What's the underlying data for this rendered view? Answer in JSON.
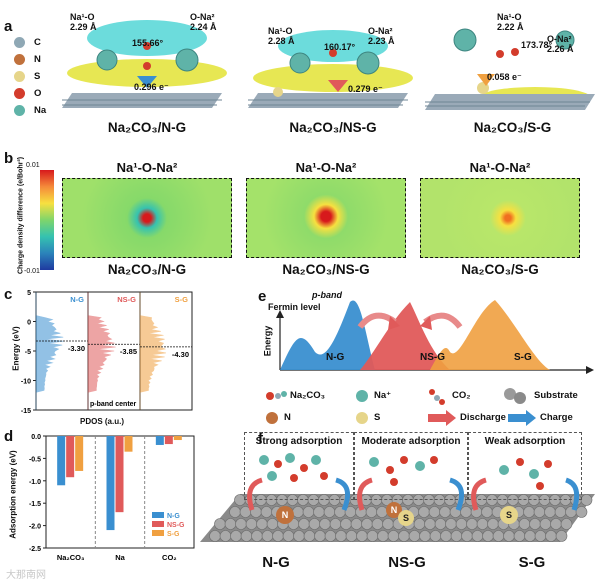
{
  "panels": {
    "a": {
      "label": "a",
      "legend": [
        {
          "symbol": "C",
          "color": "#8fa8b5"
        },
        {
          "symbol": "N",
          "color": "#c0713c"
        },
        {
          "symbol": "S",
          "color": "#e6d58a"
        },
        {
          "symbol": "O",
          "color": "#d33c2c"
        },
        {
          "symbol": "Na",
          "color": "#5fb3a8"
        }
      ],
      "structures": [
        {
          "name": "Na₂CO₃/N-G",
          "na1o_label": "Na¹-O",
          "na1o_value": "2.29 Å",
          "ona2_label": "O-Na²",
          "ona2_value": "2.24 Å",
          "angle": "155.66°",
          "charge": "0.296 e⁻"
        },
        {
          "name": "Na₂CO₃/NS-G",
          "na1o_label": "Na¹-O",
          "na1o_value": "2.28 Å",
          "ona2_label": "O-Na²",
          "ona2_value": "2.23 Å",
          "angle": "160.17°",
          "charge": "0.279 e⁻"
        },
        {
          "name": "Na₂CO₃/S-G",
          "na1o_label": "Na¹-O",
          "na1o_value": "2.22 Å",
          "ona2_label": "O-Na²",
          "ona2_value": "2.26 Å",
          "angle": "173.78°",
          "charge": "0.058 e⁻"
        }
      ]
    },
    "b": {
      "label": "b",
      "colorbar_label": "Charge density difference (e/Bohr³)",
      "colorbar_max": "0.01",
      "colorbar_min": "-0.01",
      "maps": [
        {
          "title": "Na¹-O-Na²",
          "name": "Na₂CO₃/N-G",
          "border": "#3a8fd0"
        },
        {
          "title": "Na¹-O-Na²",
          "name": "Na₂CO₃/NS-G",
          "border": "#e05a5a"
        },
        {
          "title": "Na¹-O-Na²",
          "name": "Na₂CO₃/S-G",
          "border": "#9ec23a"
        }
      ]
    },
    "c": {
      "label": "c",
      "ylabel": "Energy (eV)",
      "xlabel": "PDOS (a.u.)",
      "note": "p-band center",
      "yticks": [
        "5",
        "0",
        "-5",
        "-10",
        "-15"
      ],
      "columns": [
        {
          "name": "N-G",
          "center": "-3.30",
          "color": "#3a8fd0"
        },
        {
          "name": "NS-G",
          "center": "-3.85",
          "color": "#e05a5a"
        },
        {
          "name": "S-G",
          "center": "-4.30",
          "color": "#f0a040"
        }
      ]
    },
    "d": {
      "label": "d",
      "ylabel": "Adsorption energy (eV)",
      "yticks": [
        "0.0",
        "-0.5",
        "-1.0",
        "-1.5",
        "-2.0",
        "-2.5"
      ],
      "categories": [
        "Na₂CO₃",
        "Na",
        "CO₂"
      ],
      "legend": [
        "N-G",
        "NS-G",
        "S-G"
      ],
      "colors": [
        "#3a8fd0",
        "#e05a5a",
        "#f0a040"
      ]
    },
    "e": {
      "label": "e",
      "fermi_label": "Fermin level",
      "pband_label": "p-band",
      "energy_label": "Energy",
      "peaks": [
        "N-G",
        "NS-G",
        "S-G"
      ],
      "legend": {
        "na2co3": "Na₂CO₃",
        "na": "Na⁺",
        "co2": "CO₂",
        "substrate": "Substrate",
        "n": "N",
        "s": "S",
        "discharge": "Discharge",
        "charge": "Charge"
      }
    },
    "f": {
      "label": "f",
      "boxes": [
        "Strong adsorption",
        "Moderate adsorption",
        "Weak adsorption"
      ],
      "substrates": [
        "N-G",
        "NS-G",
        "S-G"
      ],
      "site_labels": [
        "N",
        "N",
        "S",
        "S"
      ]
    }
  },
  "watermark": "大那南网",
  "chart_data": [
    {
      "type": "bar",
      "title": "",
      "categories": [
        "Na₂CO₃",
        "Na",
        "CO₂"
      ],
      "series": [
        {
          "name": "N-G",
          "values": [
            -1.1,
            -2.1,
            -0.2
          ]
        },
        {
          "name": "NS-G",
          "values": [
            -0.92,
            -1.7,
            -0.18
          ]
        },
        {
          "name": "S-G",
          "values": [
            -0.78,
            -0.35,
            -0.09
          ]
        }
      ],
      "xlabel": "",
      "ylabel": "Adsorption energy (eV)",
      "ylim": [
        -2.5,
        0.0
      ],
      "legend_position": "bottom-right"
    },
    {
      "type": "line",
      "title": "",
      "xlabel": "PDOS (a.u.)",
      "ylabel": "Energy (eV)",
      "ylim": [
        -15,
        5
      ],
      "series": [
        {
          "name": "N-G",
          "p_band_center": -3.3
        },
        {
          "name": "NS-G",
          "p_band_center": -3.85
        },
        {
          "name": "S-G",
          "p_band_center": -4.3
        }
      ]
    }
  ]
}
